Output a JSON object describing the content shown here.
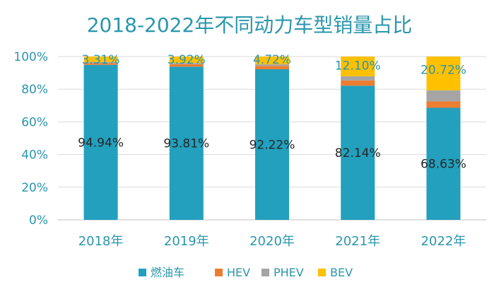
{
  "chart_data": {
    "type": "bar",
    "stacked": true,
    "title": "2018-2022年不同动力车型销量占比",
    "categories": [
      "2018年",
      "2019年",
      "2020年",
      "2021年",
      "2022年"
    ],
    "ylim": [
      0,
      100
    ],
    "yticks": [
      "0%",
      "20%",
      "40%",
      "60%",
      "80%",
      "100%"
    ],
    "legend_position": "bottom",
    "grid": true,
    "series": [
      {
        "name": "燃油车",
        "color": "#22a0bd",
        "values": [
          94.94,
          93.81,
          92.22,
          82.14,
          68.63
        ],
        "labels": [
          "94.94%",
          "93.81%",
          "92.22%",
          "82.14%",
          "68.63%"
        ]
      },
      {
        "name": "HEV",
        "color": "#ed7d31",
        "values": [
          1.0,
          1.5,
          2.0,
          3.2,
          3.9
        ]
      },
      {
        "name": "PHEV",
        "color": "#a5a5a5",
        "values": [
          0.75,
          0.77,
          1.06,
          2.56,
          6.75
        ]
      },
      {
        "name": "BEV",
        "color": "#ffc000",
        "values": [
          3.31,
          3.92,
          4.72,
          12.1,
          20.72
        ],
        "labels": [
          "3.31%",
          "3.92%",
          "4.72%",
          "12.10%",
          "20.72%"
        ]
      }
    ]
  }
}
